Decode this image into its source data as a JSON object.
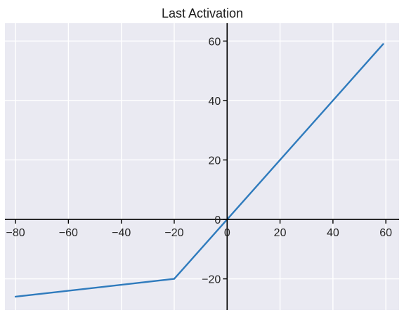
{
  "chart_data": {
    "type": "line",
    "title": "Last Activation",
    "xlabel": "",
    "ylabel": "",
    "xlim": [
      -84,
      65
    ],
    "ylim": [
      -30.5,
      66
    ],
    "x_ticks": [
      -80,
      -60,
      -40,
      -20,
      0,
      20,
      40,
      60
    ],
    "y_ticks": [
      -20,
      0,
      20,
      40,
      60
    ],
    "x_tick_labels": [
      "−80",
      "−60",
      "−40",
      "−20",
      "0",
      "20",
      "40",
      "60"
    ],
    "y_tick_labels": [
      "−20",
      "0",
      "20",
      "40",
      "60"
    ],
    "grid": true,
    "legend": "none",
    "series": [
      {
        "x": [
          -80,
          -20,
          0,
          59
        ],
        "y": [
          -26,
          -20,
          0,
          59
        ]
      }
    ],
    "colors": {
      "background": "#eaeaf2",
      "grid": "#ffffff",
      "line": "#2f7bbd",
      "axis": "#000000"
    }
  }
}
